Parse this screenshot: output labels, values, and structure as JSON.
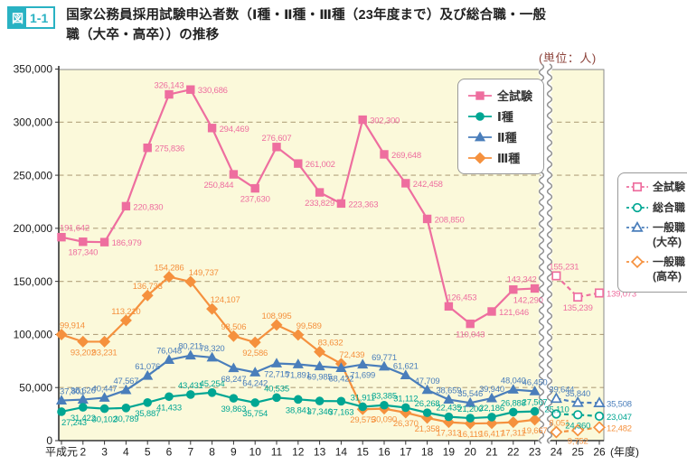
{
  "figure": {
    "badge_icon": "図",
    "badge_number": "1-1",
    "title_line1": "国家公務員採用試験申込者数（Ⅰ種・Ⅱ種・Ⅲ種（23年度まで）及び総合職・一般",
    "title_line2": "職（大卒・高卒））の推移",
    "unit": "(単位：人)"
  },
  "chart_data": {
    "type": "line",
    "x_categories": [
      "平成元",
      "2",
      "3",
      "4",
      "5",
      "6",
      "7",
      "8",
      "9",
      "10",
      "11",
      "12",
      "13",
      "14",
      "15",
      "16",
      "17",
      "18",
      "19",
      "20",
      "21",
      "22",
      "23",
      "24",
      "25",
      "26"
    ],
    "x_suffix": "(年度)",
    "ylim": [
      0,
      350000
    ],
    "y_tick_step": 50000,
    "grid": true,
    "axis_break_between": [
      "23",
      "24"
    ],
    "plot_bg_color": "#fbf9da",
    "grid_color": "#b3a37e",
    "series": [
      {
        "name": "全試験",
        "color": "#ee6e9f",
        "marker": "square",
        "style": "solid",
        "start_index": 0,
        "values": [
          191642,
          187340,
          186979,
          220830,
          275836,
          326143,
          330686,
          294469,
          250844,
          237630,
          276607,
          261002,
          233829,
          223363,
          302300,
          269648,
          242458,
          208850,
          126453,
          110043,
          121646,
          142290,
          143342
        ]
      },
      {
        "name": "Ⅰ種",
        "color": "#00a693",
        "marker": "circle",
        "style": "solid",
        "start_index": 0,
        "values": [
          27243,
          31422,
          30102,
          30789,
          35887,
          41433,
          43431,
          45254,
          39863,
          35754,
          40535,
          38841,
          37346,
          37163,
          31911,
          33385,
          31112,
          26268,
          22435,
          21200,
          22186,
          26888,
          27567
        ]
      },
      {
        "name": "Ⅱ種",
        "color": "#4a7ebb",
        "marker": "triangle",
        "style": "solid",
        "start_index": 0,
        "values": [
          37801,
          38626,
          40447,
          47567,
          61076,
          76048,
          80211,
          78320,
          68247,
          64242,
          72715,
          71891,
          69985,
          68422,
          71699,
          69771,
          61621,
          47709,
          38659,
          35546,
          39940,
          48040,
          46450
        ]
      },
      {
        "name": "Ⅲ種",
        "color": "#f5913e",
        "marker": "diamond",
        "style": "solid",
        "start_index": 0,
        "values": [
          99914,
          93202,
          93231,
          113210,
          136733,
          154286,
          149737,
          124107,
          98506,
          92586,
          108995,
          99589,
          83632,
          72439,
          29575,
          30090,
          26370,
          21358,
          17313,
          16119,
          16417,
          17311,
          19667
        ]
      },
      {
        "name": "全試験",
        "color": "#ee6e9f",
        "marker": "square-open",
        "style": "dashed",
        "start_index": 23,
        "values": [
          155231,
          135239,
          139073
        ]
      },
      {
        "name": "総合職",
        "color": "#00a693",
        "marker": "circle-open",
        "style": "dashed",
        "start_index": 23,
        "values": [
          25110,
          24360,
          23047
        ]
      },
      {
        "name": "一般職（大卒）",
        "color": "#4a7ebb",
        "marker": "triangle-open",
        "style": "dashed",
        "start_index": 23,
        "values": [
          39644,
          35840,
          35508
        ]
      },
      {
        "name": "一般職（高卒）",
        "color": "#f5913e",
        "marker": "diamond-open",
        "style": "dashed",
        "start_index": 23,
        "values": [
          8051,
          9752,
          12482
        ]
      }
    ],
    "legend_main": [
      "全試験",
      "Ⅰ種",
      "Ⅱ種",
      "Ⅲ種"
    ],
    "legend_right": [
      {
        "label": "全試験",
        "sublabel": ""
      },
      {
        "label": "総合職",
        "sublabel": ""
      },
      {
        "label": "一般職",
        "sublabel": "(大卒)"
      },
      {
        "label": "一般職",
        "sublabel": "(高卒)"
      }
    ]
  }
}
